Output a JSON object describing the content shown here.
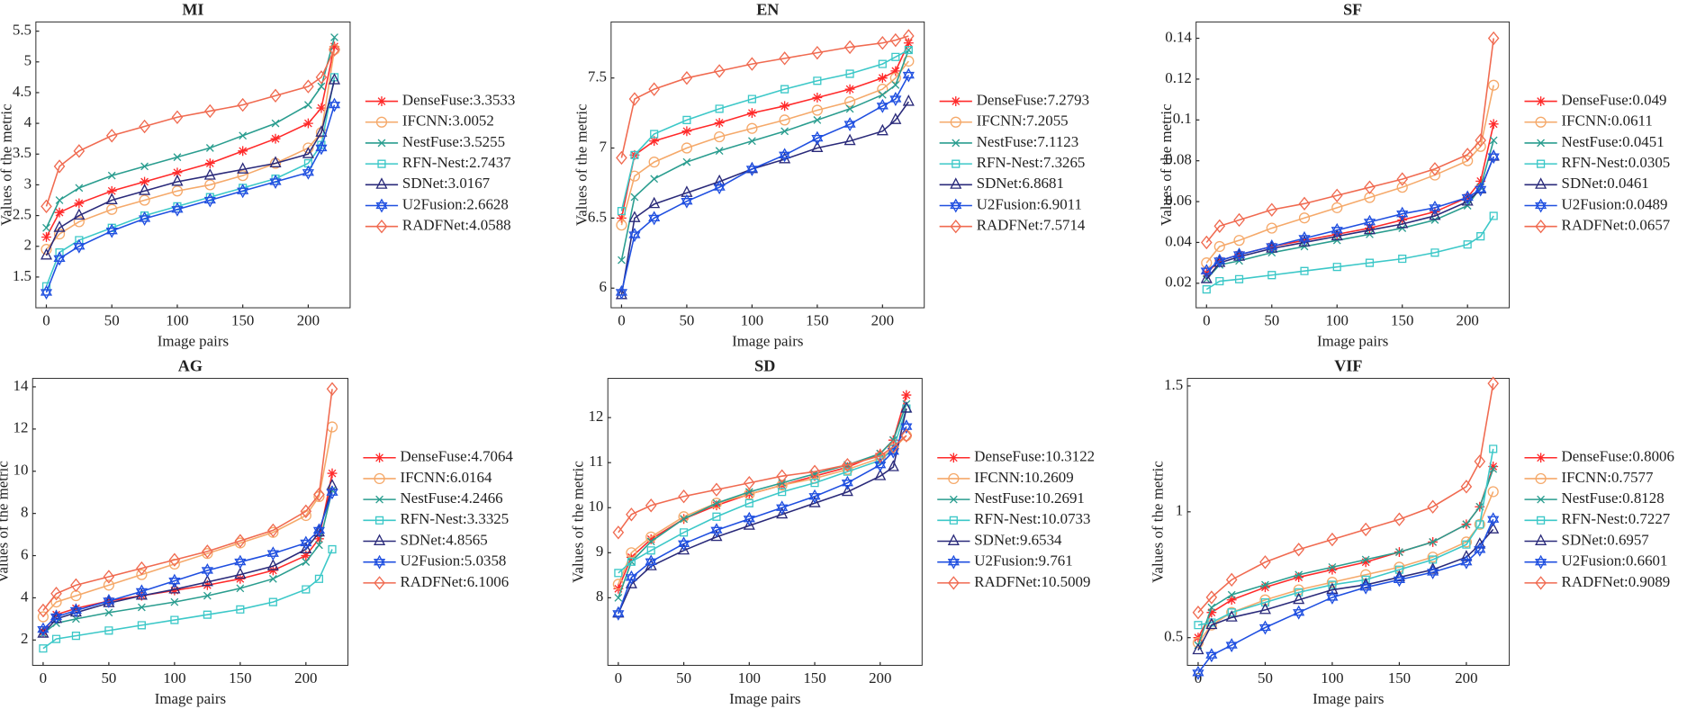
{
  "chart_data": [
    {
      "type": "line",
      "title": "MI",
      "xlabel": "Image pairs",
      "ylabel": "Values of the metric",
      "x": [
        0,
        10,
        25,
        50,
        75,
        100,
        125,
        150,
        175,
        200,
        210,
        220
      ],
      "xlim": [
        -8,
        232
      ],
      "ylim": [
        1.0,
        5.65
      ],
      "xticks": [
        0,
        50,
        100,
        150,
        200
      ],
      "yticks": [
        1.5,
        2,
        2.5,
        3,
        3.5,
        4,
        4.5,
        5,
        5.5
      ],
      "series": [
        {
          "name": "DenseFuse:3.3533",
          "color": "#ff2a2a",
          "marker": "star",
          "values": [
            2.15,
            2.55,
            2.7,
            2.9,
            3.05,
            3.2,
            3.35,
            3.55,
            3.75,
            4.0,
            4.25,
            5.25
          ]
        },
        {
          "name": "IFCNN:3.0052",
          "color": "#f5a96a",
          "marker": "circle",
          "values": [
            1.95,
            2.2,
            2.4,
            2.6,
            2.75,
            2.9,
            3.0,
            3.15,
            3.35,
            3.6,
            3.85,
            5.2
          ]
        },
        {
          "name": "NestFuse:3.5255",
          "color": "#2a9d8f",
          "marker": "x",
          "values": [
            2.3,
            2.75,
            2.95,
            3.15,
            3.3,
            3.45,
            3.6,
            3.8,
            4.0,
            4.3,
            4.6,
            5.4
          ]
        },
        {
          "name": "RFN-Nest:2.7437",
          "color": "#3cc8c8",
          "marker": "square",
          "values": [
            1.35,
            1.9,
            2.1,
            2.3,
            2.5,
            2.65,
            2.8,
            2.95,
            3.1,
            3.35,
            3.65,
            4.75
          ]
        },
        {
          "name": "SDNet:3.0167",
          "color": "#2a2a7a",
          "marker": "triangle",
          "values": [
            1.85,
            2.3,
            2.5,
            2.75,
            2.9,
            3.05,
            3.15,
            3.25,
            3.35,
            3.5,
            3.85,
            4.7
          ]
        },
        {
          "name": "U2Fusion:2.6628",
          "color": "#1f4fe0",
          "marker": "hexagram",
          "values": [
            1.25,
            1.8,
            2.0,
            2.25,
            2.45,
            2.6,
            2.75,
            2.9,
            3.05,
            3.2,
            3.6,
            4.3
          ]
        },
        {
          "name": "RADFNet:4.0588",
          "color": "#f06a50",
          "marker": "diamond",
          "values": [
            2.65,
            3.3,
            3.55,
            3.8,
            3.95,
            4.1,
            4.2,
            4.3,
            4.45,
            4.6,
            4.75,
            5.2
          ]
        }
      ]
    },
    {
      "type": "line",
      "title": "EN",
      "xlabel": "Image pairs",
      "ylabel": "Values of the metric",
      "x": [
        0,
        10,
        25,
        50,
        75,
        100,
        125,
        150,
        175,
        200,
        210,
        220
      ],
      "xlim": [
        -8,
        232
      ],
      "ylim": [
        5.86,
        7.9
      ],
      "xticks": [
        0,
        50,
        100,
        150,
        200
      ],
      "yticks": [
        6,
        6.5,
        7,
        7.5
      ],
      "series": [
        {
          "name": "DenseFuse:7.2793",
          "color": "#ff2a2a",
          "marker": "star",
          "values": [
            6.5,
            6.95,
            7.05,
            7.12,
            7.18,
            7.25,
            7.3,
            7.36,
            7.42,
            7.5,
            7.55,
            7.75
          ]
        },
        {
          "name": "IFCNN:7.2055",
          "color": "#f5a96a",
          "marker": "circle",
          "values": [
            6.45,
            6.8,
            6.9,
            7.0,
            7.08,
            7.14,
            7.2,
            7.27,
            7.33,
            7.42,
            7.5,
            7.62
          ]
        },
        {
          "name": "NestFuse:7.1123",
          "color": "#2a9d8f",
          "marker": "x",
          "values": [
            6.2,
            6.65,
            6.78,
            6.9,
            6.98,
            7.05,
            7.12,
            7.2,
            7.28,
            7.38,
            7.45,
            7.7
          ]
        },
        {
          "name": "RFN-Nest:7.3265",
          "color": "#3cc8c8",
          "marker": "square",
          "values": [
            6.55,
            6.95,
            7.1,
            7.2,
            7.28,
            7.35,
            7.42,
            7.48,
            7.53,
            7.6,
            7.65,
            7.7
          ]
        },
        {
          "name": "SDNet:6.8681",
          "color": "#2a2a7a",
          "marker": "triangle",
          "values": [
            5.95,
            6.5,
            6.6,
            6.68,
            6.76,
            6.85,
            6.92,
            7.0,
            7.05,
            7.12,
            7.2,
            7.33
          ]
        },
        {
          "name": "U2Fusion:6.9011",
          "color": "#1f4fe0",
          "marker": "hexagram",
          "values": [
            5.97,
            6.38,
            6.5,
            6.62,
            6.72,
            6.85,
            6.95,
            7.07,
            7.17,
            7.3,
            7.35,
            7.52
          ]
        },
        {
          "name": "RADFNet:7.5714",
          "color": "#f06a50",
          "marker": "diamond",
          "values": [
            6.93,
            7.35,
            7.42,
            7.5,
            7.55,
            7.6,
            7.64,
            7.68,
            7.72,
            7.75,
            7.77,
            7.8
          ]
        }
      ]
    },
    {
      "type": "line",
      "title": "SF",
      "xlabel": "Image pairs",
      "ylabel": "Values of the metric",
      "x": [
        0,
        10,
        25,
        50,
        75,
        100,
        125,
        150,
        175,
        200,
        210,
        220
      ],
      "xlim": [
        -8,
        232
      ],
      "ylim": [
        0.008,
        0.148
      ],
      "xticks": [
        0,
        50,
        100,
        150,
        200
      ],
      "yticks": [
        0.02,
        0.04,
        0.06,
        0.08,
        0.1,
        0.12,
        0.14
      ],
      "series": [
        {
          "name": "DenseFuse:0.049",
          "color": "#ff2a2a",
          "marker": "star",
          "values": [
            0.025,
            0.031,
            0.034,
            0.038,
            0.041,
            0.044,
            0.047,
            0.051,
            0.055,
            0.062,
            0.07,
            0.098
          ]
        },
        {
          "name": "IFCNN:0.0611",
          "color": "#f5a96a",
          "marker": "circle",
          "values": [
            0.03,
            0.038,
            0.041,
            0.047,
            0.052,
            0.057,
            0.062,
            0.067,
            0.073,
            0.08,
            0.087,
            0.117
          ]
        },
        {
          "name": "NestFuse:0.0451",
          "color": "#2a9d8f",
          "marker": "x",
          "values": [
            0.022,
            0.029,
            0.031,
            0.035,
            0.038,
            0.041,
            0.044,
            0.047,
            0.051,
            0.058,
            0.067,
            0.09
          ]
        },
        {
          "name": "RFN-Nest:0.0305",
          "color": "#3cc8c8",
          "marker": "square",
          "values": [
            0.017,
            0.021,
            0.022,
            0.024,
            0.026,
            0.028,
            0.03,
            0.032,
            0.035,
            0.039,
            0.043,
            0.053
          ]
        },
        {
          "name": "SDNet:0.0461",
          "color": "#2a2a7a",
          "marker": "triangle",
          "values": [
            0.022,
            0.03,
            0.033,
            0.037,
            0.04,
            0.043,
            0.046,
            0.049,
            0.053,
            0.06,
            0.066,
            0.082
          ]
        },
        {
          "name": "U2Fusion:0.0489",
          "color": "#1f4fe0",
          "marker": "hexagram",
          "values": [
            0.026,
            0.031,
            0.034,
            0.038,
            0.042,
            0.046,
            0.05,
            0.054,
            0.057,
            0.062,
            0.066,
            0.082
          ]
        },
        {
          "name": "RADFNet:0.0657",
          "color": "#f06a50",
          "marker": "diamond",
          "values": [
            0.04,
            0.048,
            0.051,
            0.056,
            0.059,
            0.063,
            0.067,
            0.071,
            0.076,
            0.083,
            0.09,
            0.14
          ]
        }
      ]
    },
    {
      "type": "line",
      "title": "AG",
      "xlabel": "Image pairs",
      "ylabel": "Values of the metric",
      "x": [
        0,
        10,
        25,
        50,
        75,
        100,
        125,
        150,
        175,
        200,
        210,
        220
      ],
      "xlim": [
        -8,
        232
      ],
      "ylim": [
        0.8,
        14.4
      ],
      "xticks": [
        0,
        50,
        100,
        150,
        200
      ],
      "yticks": [
        2,
        4,
        6,
        8,
        10,
        12,
        14
      ],
      "series": [
        {
          "name": "DenseFuse:4.7064",
          "color": "#ff2a2a",
          "marker": "star",
          "values": [
            2.4,
            3.2,
            3.5,
            3.85,
            4.1,
            4.35,
            4.6,
            4.9,
            5.3,
            6.0,
            6.8,
            9.9
          ]
        },
        {
          "name": "IFCNN:6.0164",
          "color": "#f5a96a",
          "marker": "circle",
          "values": [
            3.1,
            3.8,
            4.1,
            4.6,
            5.1,
            5.6,
            6.1,
            6.6,
            7.1,
            7.9,
            8.8,
            12.1
          ]
        },
        {
          "name": "NestFuse:4.2466",
          "color": "#2a9d8f",
          "marker": "x",
          "values": [
            2.3,
            2.8,
            3.0,
            3.3,
            3.55,
            3.8,
            4.1,
            4.45,
            4.9,
            5.7,
            6.5,
            9.1
          ]
        },
        {
          "name": "RFN-Nest:3.3325",
          "color": "#3cc8c8",
          "marker": "square",
          "values": [
            1.6,
            2.05,
            2.2,
            2.45,
            2.7,
            2.95,
            3.2,
            3.45,
            3.8,
            4.4,
            4.9,
            6.3
          ]
        },
        {
          "name": "SDNet:4.8565",
          "color": "#2a2a7a",
          "marker": "triangle",
          "values": [
            2.3,
            3.0,
            3.3,
            3.75,
            4.1,
            4.4,
            4.75,
            5.1,
            5.5,
            6.3,
            7.1,
            9.3
          ]
        },
        {
          "name": "U2Fusion:5.0358",
          "color": "#1f4fe0",
          "marker": "hexagram",
          "values": [
            2.5,
            3.1,
            3.4,
            3.85,
            4.3,
            4.8,
            5.3,
            5.7,
            6.1,
            6.6,
            7.2,
            9.0
          ]
        },
        {
          "name": "RADFNet:6.1006",
          "color": "#f06a50",
          "marker": "diamond",
          "values": [
            3.4,
            4.2,
            4.6,
            5.0,
            5.4,
            5.8,
            6.2,
            6.7,
            7.2,
            8.1,
            8.9,
            13.9
          ]
        }
      ]
    },
    {
      "type": "line",
      "title": "SD",
      "xlabel": "Image pairs",
      "ylabel": "Values of the metric",
      "x": [
        0,
        10,
        25,
        50,
        75,
        100,
        125,
        150,
        175,
        200,
        210,
        220
      ],
      "xlim": [
        -8,
        232
      ],
      "ylim": [
        6.5,
        12.87
      ],
      "xticks": [
        0,
        50,
        100,
        150,
        200
      ],
      "yticks": [
        8,
        9,
        10,
        11,
        12
      ],
      "series": [
        {
          "name": "DenseFuse:10.3122",
          "color": "#ff2a2a",
          "marker": "star",
          "values": [
            8.2,
            8.9,
            9.3,
            9.75,
            10.05,
            10.3,
            10.5,
            10.7,
            10.9,
            11.2,
            11.5,
            12.5
          ]
        },
        {
          "name": "IFCNN:10.2609",
          "color": "#f5a96a",
          "marker": "circle",
          "values": [
            8.3,
            9.0,
            9.35,
            9.8,
            10.1,
            10.3,
            10.5,
            10.65,
            10.85,
            11.1,
            11.3,
            11.6
          ]
        },
        {
          "name": "NestFuse:10.2691",
          "color": "#2a9d8f",
          "marker": "x",
          "values": [
            8.0,
            8.8,
            9.25,
            9.75,
            10.1,
            10.35,
            10.55,
            10.75,
            10.95,
            11.2,
            11.5,
            12.3
          ]
        },
        {
          "name": "RFN-Nest:10.0733",
          "color": "#3cc8c8",
          "marker": "square",
          "values": [
            8.55,
            8.8,
            9.05,
            9.45,
            9.8,
            10.1,
            10.35,
            10.55,
            10.8,
            11.05,
            11.3,
            12.2
          ]
        },
        {
          "name": "SDNet:9.6534",
          "color": "#2a2a7a",
          "marker": "triangle",
          "values": [
            7.65,
            8.3,
            8.7,
            9.05,
            9.35,
            9.6,
            9.85,
            10.1,
            10.35,
            10.7,
            10.9,
            12.2
          ]
        },
        {
          "name": "U2Fusion:9.761",
          "color": "#1f4fe0",
          "marker": "hexagram",
          "values": [
            7.65,
            8.45,
            8.8,
            9.2,
            9.5,
            9.75,
            10.0,
            10.25,
            10.55,
            10.95,
            11.25,
            11.8
          ]
        },
        {
          "name": "RADFNet:10.5009",
          "color": "#f06a50",
          "marker": "diamond",
          "values": [
            9.45,
            9.85,
            10.05,
            10.25,
            10.4,
            10.55,
            10.7,
            10.8,
            10.95,
            11.15,
            11.35,
            11.6
          ]
        }
      ]
    },
    {
      "type": "line",
      "title": "VIF",
      "xlabel": "Image pairs",
      "ylabel": "Values of the metric",
      "x": [
        0,
        10,
        25,
        50,
        75,
        100,
        125,
        150,
        175,
        200,
        210,
        220
      ],
      "xlim": [
        -8,
        232
      ],
      "ylim": [
        0.39,
        1.53
      ],
      "xticks": [
        0,
        50,
        100,
        150,
        200
      ],
      "yticks": [
        0.5,
        1,
        1.5
      ],
      "series": [
        {
          "name": "DenseFuse:0.8006",
          "color": "#ff2a2a",
          "marker": "star",
          "values": [
            0.5,
            0.6,
            0.65,
            0.7,
            0.74,
            0.77,
            0.8,
            0.84,
            0.88,
            0.95,
            1.02,
            1.18
          ]
        },
        {
          "name": "IFCNN:0.7577",
          "color": "#f5a96a",
          "marker": "circle",
          "values": [
            0.48,
            0.55,
            0.6,
            0.65,
            0.69,
            0.72,
            0.75,
            0.78,
            0.82,
            0.88,
            0.95,
            1.08
          ]
        },
        {
          "name": "NestFuse:0.8128",
          "color": "#2a9d8f",
          "marker": "x",
          "values": [
            0.47,
            0.62,
            0.67,
            0.71,
            0.75,
            0.78,
            0.81,
            0.84,
            0.88,
            0.95,
            1.02,
            1.17
          ]
        },
        {
          "name": "RFN-Nest:0.7227",
          "color": "#3cc8c8",
          "marker": "square",
          "values": [
            0.55,
            0.56,
            0.6,
            0.64,
            0.68,
            0.71,
            0.73,
            0.77,
            0.81,
            0.87,
            0.95,
            1.25
          ]
        },
        {
          "name": "SDNet:0.6957",
          "color": "#2a2a7a",
          "marker": "triangle",
          "values": [
            0.45,
            0.55,
            0.58,
            0.61,
            0.65,
            0.69,
            0.71,
            0.74,
            0.77,
            0.82,
            0.87,
            0.93
          ]
        },
        {
          "name": "U2Fusion:0.6601",
          "color": "#1f4fe0",
          "marker": "hexagram",
          "values": [
            0.36,
            0.43,
            0.47,
            0.54,
            0.6,
            0.66,
            0.7,
            0.73,
            0.76,
            0.8,
            0.85,
            0.97
          ]
        },
        {
          "name": "RADFNet:0.9089",
          "color": "#f06a50",
          "marker": "diamond",
          "values": [
            0.6,
            0.66,
            0.73,
            0.8,
            0.85,
            0.89,
            0.93,
            0.97,
            1.02,
            1.1,
            1.2,
            1.51
          ]
        }
      ]
    }
  ]
}
